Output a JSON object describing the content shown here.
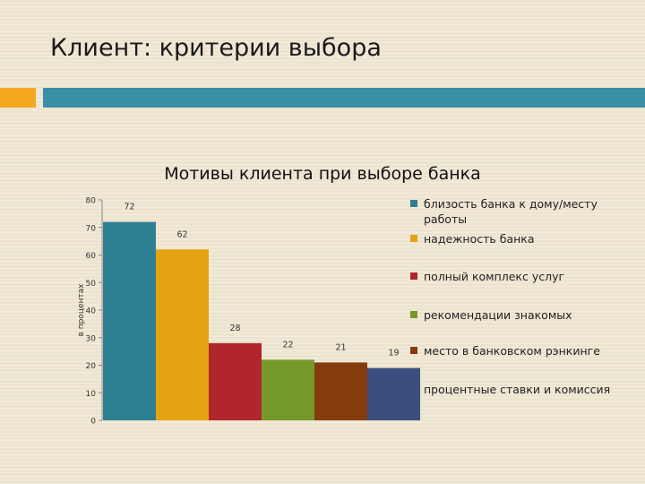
{
  "slide": {
    "title": "Клиент: критерии выбора"
  },
  "colors": {
    "accent_orange": "#f3a81f",
    "accent_bar": "#3a8fa5"
  },
  "chart_data": {
    "type": "bar",
    "title": "Мотивы клиента при выборе банка",
    "ylabel": "в процентах",
    "xlabel": "",
    "ylim": [
      0,
      80
    ],
    "yticks": [
      0,
      10,
      20,
      30,
      40,
      50,
      60,
      70,
      80
    ],
    "legend_position": "right",
    "grid": false,
    "series": [
      {
        "name": "близость банка к дому/месту работы",
        "value": 72,
        "color": "#2f7f93"
      },
      {
        "name": "надежность банка",
        "value": 62,
        "color": "#e5a312"
      },
      {
        "name": "полный комплекс услуг",
        "value": 28,
        "color": "#b1252d"
      },
      {
        "name": "рекомендации знакомых",
        "value": 22,
        "color": "#76992b"
      },
      {
        "name": "место в банковском рэнкинге",
        "value": 21,
        "color": "#843c0c"
      },
      {
        "name": "процентные ставки и комиссия",
        "value": 19,
        "color": "#3b4e7d"
      }
    ]
  }
}
